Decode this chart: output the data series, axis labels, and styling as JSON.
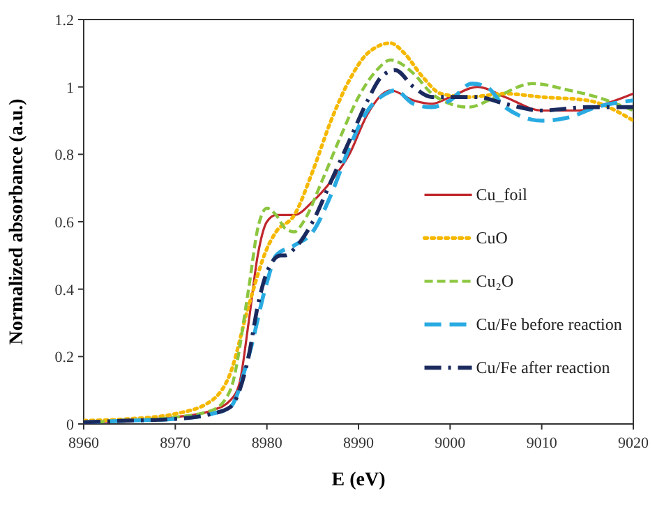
{
  "chart_data": {
    "type": "line",
    "xlabel": "E (eV)",
    "ylabel": "Normalized absorbance (a.u.)",
    "xlim": [
      8960,
      9020
    ],
    "xticks": [
      8960,
      8970,
      8980,
      8990,
      9000,
      9010,
      9020
    ],
    "ylim": [
      0,
      1.2
    ],
    "yticks": [
      0,
      0.2,
      0.4,
      0.6,
      0.8,
      1,
      1.2
    ],
    "legend": "right",
    "grid": false,
    "marker": "none",
    "series": [
      {
        "name": "Cu_foil",
        "color": "#c0272d",
        "line_style": "solid",
        "x": [
          8960,
          8965,
          8970,
          8974,
          8976,
          8977,
          8978,
          8979,
          8980,
          8981,
          8983,
          8985,
          8987,
          8989,
          8991,
          8993.5,
          8996,
          8998,
          9000,
          9003,
          9006,
          9010,
          9014,
          9017,
          9020
        ],
        "values": [
          0.005,
          0.01,
          0.02,
          0.04,
          0.07,
          0.12,
          0.3,
          0.5,
          0.6,
          0.62,
          0.62,
          0.66,
          0.72,
          0.8,
          0.92,
          0.99,
          0.96,
          0.95,
          0.97,
          1.0,
          0.97,
          0.93,
          0.93,
          0.95,
          0.98
        ]
      },
      {
        "name": "CuO",
        "color": "#f5b800",
        "line_style": "dotted",
        "x": [
          8960,
          8965,
          8970,
          8974,
          8976,
          8978,
          8980,
          8981,
          8983,
          8985,
          8987,
          8989,
          8991,
          8993.5,
          8995,
          8997,
          8999,
          9002,
          9006,
          9010,
          9015,
          9020
        ],
        "values": [
          0.01,
          0.015,
          0.03,
          0.07,
          0.15,
          0.35,
          0.52,
          0.57,
          0.62,
          0.75,
          0.9,
          1.02,
          1.1,
          1.13,
          1.1,
          1.03,
          0.98,
          0.97,
          0.98,
          0.97,
          0.96,
          0.9
        ]
      },
      {
        "name": "Cu₂O",
        "color": "#8cc63f",
        "line_style": "dashed",
        "x": [
          8960,
          8965,
          8970,
          8974,
          8976,
          8978,
          8979,
          8980,
          8981,
          8982,
          8983,
          8984,
          8986,
          8988,
          8990,
          8992,
          8993.5,
          8996,
          8998,
          9000,
          9002,
          9005,
          9009,
          9013,
          9016,
          9020
        ],
        "values": [
          0.005,
          0.01,
          0.02,
          0.04,
          0.1,
          0.4,
          0.58,
          0.64,
          0.62,
          0.58,
          0.57,
          0.6,
          0.72,
          0.85,
          0.97,
          1.05,
          1.08,
          1.04,
          0.98,
          0.95,
          0.94,
          0.97,
          1.01,
          0.99,
          0.97,
          0.93
        ]
      },
      {
        "name": "Cu/Fe before reaction",
        "color": "#29abe2",
        "line_style": "longdash",
        "x": [
          8960,
          8965,
          8970,
          8974,
          8976,
          8978,
          8980,
          8981,
          8983,
          8985,
          8987,
          8989,
          8991,
          8993,
          8994,
          8996,
          8998,
          9000,
          9002.4,
          9004,
          9006,
          9010,
          9013,
          9016,
          9020
        ],
        "values": [
          0.005,
          0.01,
          0.015,
          0.03,
          0.05,
          0.2,
          0.42,
          0.5,
          0.53,
          0.57,
          0.68,
          0.82,
          0.93,
          0.98,
          0.99,
          0.95,
          0.94,
          0.96,
          1.01,
          1.0,
          0.94,
          0.9,
          0.91,
          0.94,
          0.96
        ]
      },
      {
        "name": "Cu/Fe after reaction",
        "color": "#1b2a5e",
        "line_style": "dashdot",
        "x": [
          8960,
          8965,
          8970,
          8974,
          8976,
          8978,
          8979,
          8980,
          8981.5,
          8982,
          8983,
          8985,
          8987,
          8989,
          8991,
          8992.5,
          8994,
          8996,
          8998,
          9000,
          9003,
          9006,
          9010,
          9015,
          9020
        ],
        "values": [
          0.005,
          0.01,
          0.015,
          0.03,
          0.05,
          0.2,
          0.35,
          0.45,
          0.5,
          0.5,
          0.52,
          0.6,
          0.72,
          0.84,
          0.96,
          1.03,
          1.05,
          1.0,
          0.97,
          0.97,
          0.97,
          0.95,
          0.93,
          0.94,
          0.94
        ]
      }
    ]
  }
}
